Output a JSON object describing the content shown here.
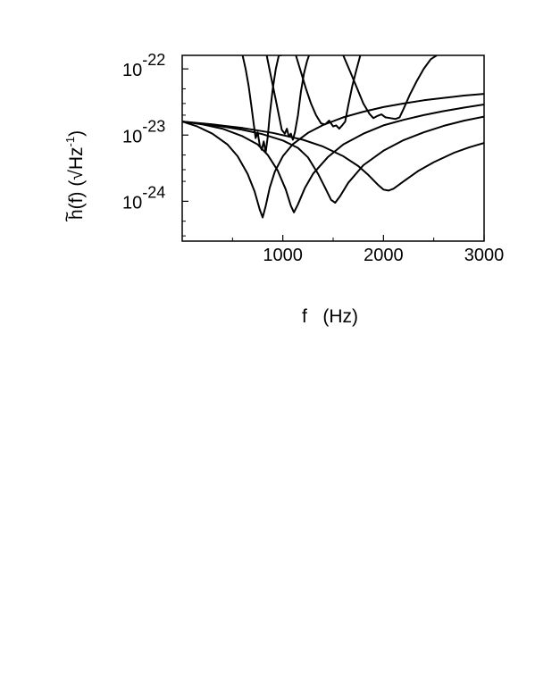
{
  "chart_data": {
    "type": "line",
    "xlabel": "f   (Hz)",
    "ylabel": "h(f) (√Hz⁻¹)",
    "ylabel_parts": {
      "main": "h(f) (√Hz",
      "sup": "-1",
      "close": ")",
      "tilde": "~"
    },
    "xlim": [
      0,
      3000
    ],
    "ylim": [
      2.5e-25,
      1.6e-22
    ],
    "yscale": "log",
    "grid": false,
    "x_tick_labels": [
      "1000",
      "2000",
      "3000"
    ],
    "x_tick_values": [
      1000,
      2000,
      3000
    ],
    "x_minor_ticks": [
      500,
      1500,
      2500
    ],
    "y_tick_labels": [
      {
        "base": "10",
        "exp": "-22",
        "value": 1e-22
      },
      {
        "base": "10",
        "exp": "-23",
        "value": 1e-23
      },
      {
        "base": "10",
        "exp": "-24",
        "value": 1e-24
      }
    ],
    "y_minor_ticks": [
      3e-25,
      5e-25,
      2e-24,
      3e-24,
      5e-24,
      2e-23,
      3e-23,
      5e-23
    ],
    "series": [
      {
        "x": [
          0,
          150,
          300,
          450,
          550,
          650,
          720,
          770,
          800,
          830,
          870,
          920,
          1000,
          1100,
          1250,
          1400,
          1600,
          1800,
          2000,
          2200,
          2400,
          2600,
          2800,
          3000
        ],
        "y": [
          1.6e-23,
          1.35e-23,
          1.05e-23,
          7.2e-24,
          4.8e-24,
          2.6e-24,
          1.4e-24,
          7.5e-25,
          5.7e-25,
          8.5e-25,
          1.6e-24,
          2.8e-24,
          4.8e-24,
          7.3e-24,
          1.08e-23,
          1.42e-23,
          1.85e-23,
          2.25e-23,
          2.65e-23,
          3e-23,
          3.35e-23,
          3.65e-23,
          3.95e-23,
          4.2e-23
        ]
      },
      {
        "x": [
          0,
          200,
          400,
          600,
          750,
          850,
          950,
          1030,
          1080,
          1110,
          1150,
          1220,
          1300,
          1450,
          1600,
          1800,
          2000,
          2200,
          2400,
          2600,
          2800,
          3000
        ],
        "y": [
          1.6e-23,
          1.45e-23,
          1.25e-23,
          9.6e-24,
          7.2e-24,
          5e-24,
          2.9e-24,
          1.5e-24,
          8.5e-25,
          6.8e-25,
          9e-25,
          1.6e-24,
          2.6e-24,
          4.7e-24,
          7.2e-24,
          1.05e-23,
          1.4e-23,
          1.7e-23,
          2e-23,
          2.3e-23,
          2.6e-23,
          2.9e-23
        ]
      },
      {
        "x": [
          0,
          200,
          400,
          600,
          800,
          1000,
          1150,
          1250,
          1350,
          1420,
          1480,
          1520,
          1570,
          1650,
          1800,
          2000,
          2200,
          2400,
          2600,
          2800,
          3000
        ],
        "y": [
          1.6e-23,
          1.48e-23,
          1.35e-23,
          1.2e-23,
          1.03e-23,
          8.3e-24,
          6.4e-24,
          4.6e-24,
          2.6e-24,
          1.6e-24,
          1.05e-24,
          9.5e-25,
          1.2e-24,
          1.9e-24,
          3.5e-24,
          5.8e-24,
          8.4e-24,
          1.1e-23,
          1.38e-23,
          1.65e-23,
          1.9e-23
        ]
      },
      {
        "x": [
          0,
          300,
          600,
          900,
          1200,
          1400,
          1600,
          1750,
          1850,
          1950,
          2000,
          2050,
          2100,
          2200,
          2350,
          2500,
          2700,
          2850,
          3000
        ],
        "y": [
          1.6e-23,
          1.45e-23,
          1.28e-23,
          1.08e-23,
          8.5e-24,
          6.7e-24,
          4.8e-24,
          3.4e-24,
          2.5e-24,
          1.75e-24,
          1.5e-24,
          1.45e-24,
          1.55e-24,
          2e-24,
          2.9e-24,
          3.9e-24,
          5.4e-24,
          6.5e-24,
          7.6e-24
        ]
      },
      {
        "x": [
          600,
          630,
          660,
          690,
          710,
          730,
          750,
          770,
          790,
          810,
          830,
          850,
          870,
          900,
          930,
          960,
          990
        ],
        "y": [
          1.6e-22,
          1e-22,
          5.5e-23,
          2.6e-23,
          1.5e-23,
          9e-24,
          1.1e-23,
          7e-24,
          6e-24,
          8e-24,
          5.5e-24,
          9.5e-24,
          2e-23,
          5e-23,
          1e-22,
          1.6e-22,
          1.6e-22
        ]
      },
      {
        "x": [
          840,
          880,
          920,
          960,
          990,
          1020,
          1040,
          1060,
          1080,
          1100,
          1120,
          1150,
          1180,
          1210,
          1240,
          1260
        ],
        "y": [
          1.6e-22,
          8e-23,
          4e-23,
          2e-23,
          1.2e-23,
          1.05e-23,
          1.25e-23,
          9.5e-24,
          1.05e-23,
          8.5e-24,
          1.1e-23,
          2e-23,
          4.5e-23,
          8.5e-23,
          1.3e-22,
          1.6e-22
        ]
      },
      {
        "x": [
          1130,
          1180,
          1230,
          1280,
          1330,
          1380,
          1420,
          1460,
          1500,
          1530,
          1560,
          1590,
          1620,
          1650,
          1690,
          1730,
          1770
        ],
        "y": [
          1.6e-22,
          9e-23,
          5e-23,
          3e-23,
          2e-23,
          1.5e-23,
          1.45e-23,
          1.65e-23,
          1.35e-23,
          1.4e-23,
          1.25e-23,
          1.4e-23,
          1.6e-23,
          2.8e-23,
          5.5e-23,
          9.5e-23,
          1.6e-22
        ]
      },
      {
        "x": [
          1600,
          1670,
          1740,
          1800,
          1860,
          1900,
          1940,
          1980,
          2020,
          2070,
          2120,
          2160,
          2200,
          2260,
          2330,
          2400,
          2470,
          2530
        ],
        "y": [
          1.6e-22,
          9e-23,
          5e-23,
          3e-23,
          2.1e-23,
          1.8e-23,
          1.95e-23,
          2.05e-23,
          1.85e-23,
          1.8e-23,
          1.75e-23,
          1.85e-23,
          2.5e-23,
          4e-23,
          6.5e-23,
          1e-22,
          1.4e-22,
          1.6e-22
        ]
      }
    ]
  }
}
